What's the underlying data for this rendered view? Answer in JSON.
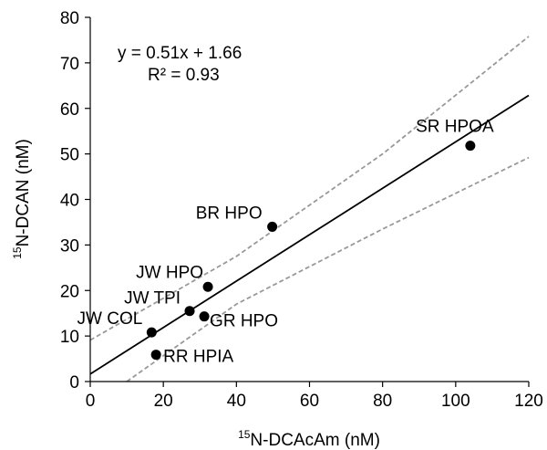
{
  "chart_data": {
    "type": "scatter",
    "xlabel": {
      "sup": "15",
      "text": "N-DCAcAm (nM)"
    },
    "ylabel": {
      "sup": "15",
      "text": "N-DCAN (nM)"
    },
    "xlim": [
      0,
      120
    ],
    "ylim": [
      0,
      80
    ],
    "xticks": [
      0,
      20,
      40,
      60,
      80,
      100,
      120
    ],
    "yticks": [
      0,
      10,
      20,
      30,
      40,
      50,
      60,
      70,
      80
    ],
    "grid": false,
    "points": [
      {
        "label": "SR HPOA",
        "x": 104,
        "y": 51.8
      },
      {
        "label": "BR HPO",
        "x": 49.8,
        "y": 34.0
      },
      {
        "label": "JW HPO",
        "x": 32.2,
        "y": 20.8
      },
      {
        "label": "JW TPI",
        "x": 27.2,
        "y": 15.5
      },
      {
        "label": "GR HPO",
        "x": 31.2,
        "y": 14.3
      },
      {
        "label": "JW COL",
        "x": 16.8,
        "y": 10.8
      },
      {
        "label": "RR HPIA",
        "x": 18.0,
        "y": 5.9
      }
    ],
    "fit_line": {
      "slope": 0.51,
      "intercept": 1.66,
      "x_range": [
        0,
        120
      ]
    },
    "confidence_band": {
      "upper": [
        [
          0,
          9.1
        ],
        [
          40,
          27.5
        ],
        [
          80,
          50.0
        ],
        [
          120,
          75.8
        ]
      ],
      "lower": [
        [
          10.0,
          0
        ],
        [
          40,
          17.0
        ],
        [
          80,
          33.5
        ],
        [
          120,
          49.2
        ]
      ]
    },
    "annotations": {
      "equation": "y = 0.51x + 1.66",
      "r_squared": "R² = 0.93"
    }
  }
}
